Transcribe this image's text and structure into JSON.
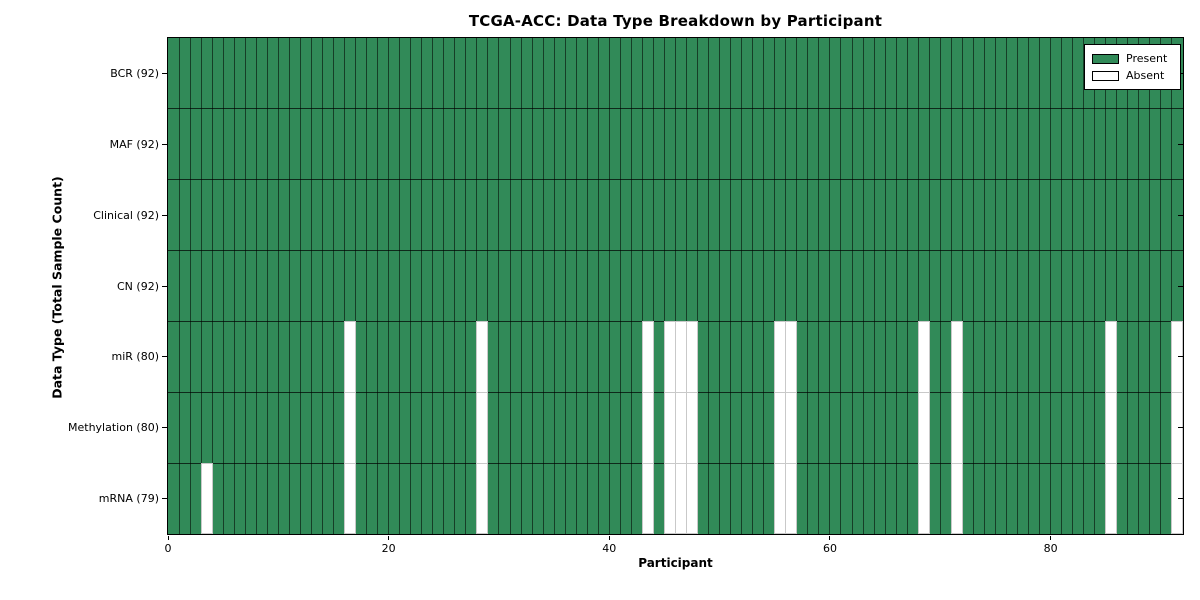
{
  "figure": {
    "background": "#ffffff"
  },
  "chart_data": {
    "type": "heatmap",
    "title": "TCGA-ACC: Data Type Breakdown by Participant",
    "xlabel": "Participant",
    "ylabel": "Data Type (Total Sample Count)",
    "x_ticks": [
      0,
      20,
      40,
      60,
      80
    ],
    "x_range": [
      0,
      92
    ],
    "n_participants": 92,
    "grid": "on",
    "colors": {
      "present": "#318a58",
      "absent": "#ffffff",
      "absent_edge": "#c9c9c9",
      "grid_vertical": "rgba(0,0,0,0.55)",
      "grid_horizontal": "rgba(0,0,0,0.7)",
      "axis": "#000000"
    },
    "legend": {
      "position": "upper-right",
      "items": [
        {
          "label": "Present",
          "color": "#318a58"
        },
        {
          "label": "Absent",
          "color": "#ffffff"
        }
      ]
    },
    "rows": [
      {
        "label": "BCR (92)",
        "data_type": "BCR",
        "present_count": 92,
        "total_participants": 92,
        "absent_participants": []
      },
      {
        "label": "MAF (92)",
        "data_type": "MAF",
        "present_count": 92,
        "total_participants": 92,
        "absent_participants": []
      },
      {
        "label": "Clinical (92)",
        "data_type": "Clinical",
        "present_count": 92,
        "total_participants": 92,
        "absent_participants": []
      },
      {
        "label": "CN (92)",
        "data_type": "CN",
        "present_count": 92,
        "total_participants": 92,
        "absent_participants": []
      },
      {
        "label": "miR (80)",
        "data_type": "miR",
        "present_count": 80,
        "total_participants": 92,
        "absent_participants": [
          16,
          28,
          43,
          45,
          46,
          47,
          55,
          56,
          68,
          71,
          85,
          91
        ]
      },
      {
        "label": "Methylation (80)",
        "data_type": "Methylation",
        "present_count": 80,
        "total_participants": 92,
        "absent_participants": [
          16,
          28,
          43,
          45,
          46,
          47,
          55,
          56,
          68,
          71,
          85,
          91
        ]
      },
      {
        "label": "mRNA (79)",
        "data_type": "mRNA",
        "present_count": 79,
        "total_participants": 92,
        "absent_participants": [
          3,
          16,
          28,
          43,
          45,
          46,
          47,
          55,
          56,
          68,
          71,
          85,
          91
        ]
      }
    ]
  }
}
